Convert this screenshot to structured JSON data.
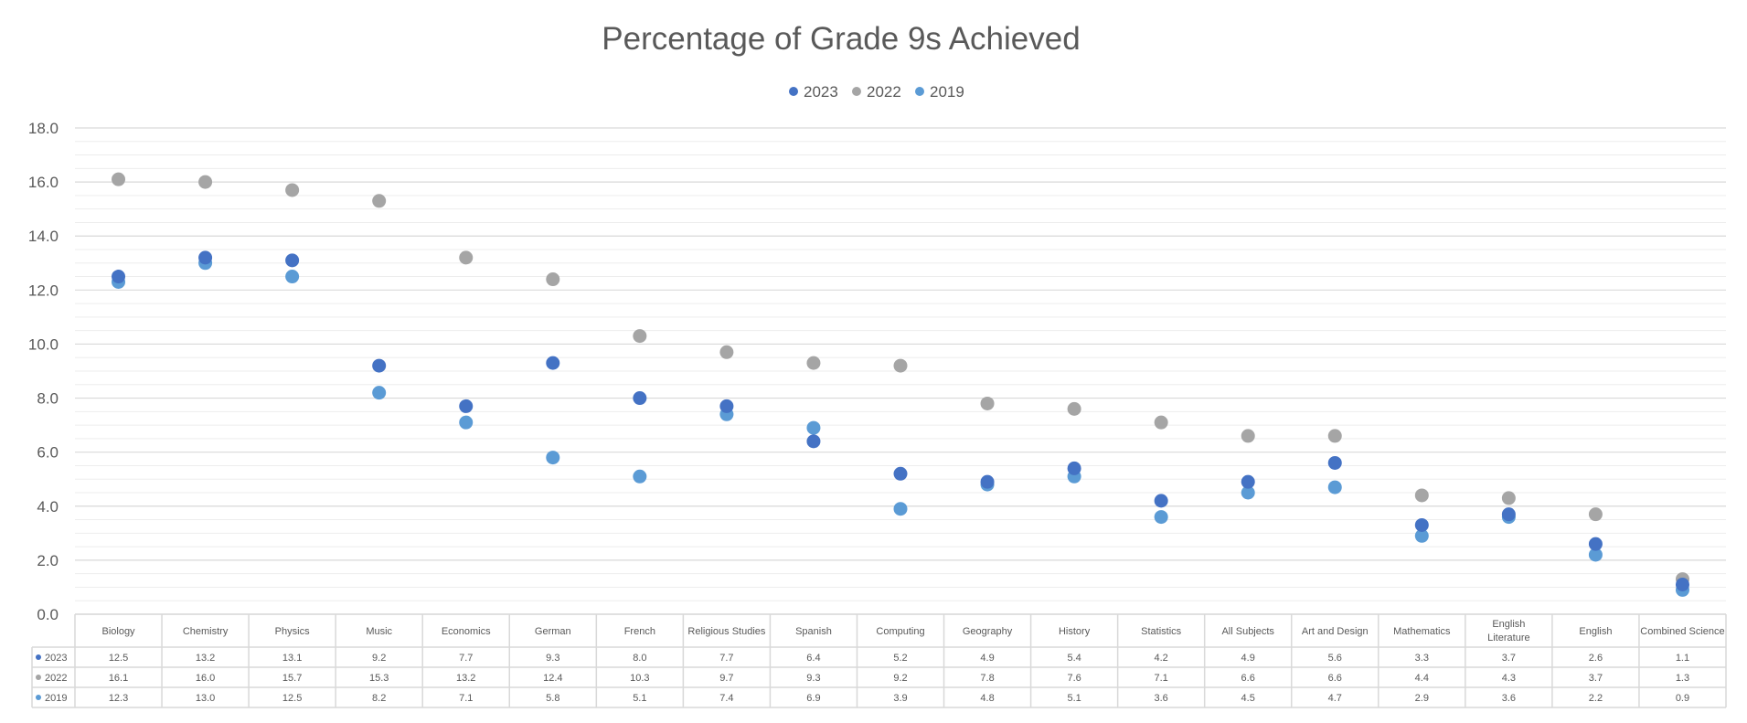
{
  "chart_data": {
    "type": "scatter",
    "title": "Percentage of Grade 9s Achieved",
    "categories": [
      "Biology",
      "Chemistry",
      "Physics",
      "Music",
      "Economics",
      "German",
      "French",
      "Religious Studies",
      "Spanish",
      "Computing",
      "Geography",
      "History",
      "Statistics",
      "All Subjects",
      "Art and Design",
      "Mathematics",
      "English Literature",
      "English",
      "Combined Science"
    ],
    "series": [
      {
        "name": "2023",
        "color": "#4472C4",
        "values": [
          12.5,
          13.2,
          13.1,
          9.2,
          7.7,
          9.3,
          8.0,
          7.7,
          6.4,
          5.2,
          4.9,
          5.4,
          4.2,
          4.9,
          5.6,
          3.3,
          3.7,
          2.6,
          1.1
        ]
      },
      {
        "name": "2022",
        "color": "#A5A5A5",
        "values": [
          16.1,
          16.0,
          15.7,
          15.3,
          13.2,
          12.4,
          10.3,
          9.7,
          9.3,
          9.2,
          7.8,
          7.6,
          7.1,
          6.6,
          6.6,
          4.4,
          4.3,
          3.7,
          1.3
        ]
      },
      {
        "name": "2019",
        "color": "#5B9BD5",
        "values": [
          12.3,
          13.0,
          12.5,
          8.2,
          7.1,
          5.8,
          5.1,
          7.4,
          6.9,
          3.9,
          4.8,
          5.1,
          3.6,
          4.5,
          4.7,
          2.9,
          3.6,
          2.2,
          0.9
        ]
      }
    ],
    "y_ticks": [
      "0.0",
      "2.0",
      "4.0",
      "6.0",
      "8.0",
      "10.0",
      "12.0",
      "14.0",
      "16.0",
      "18.0"
    ],
    "table_values": [
      [
        "12.5",
        "13.2",
        "13.1",
        "9.2",
        "7.7",
        "9.3",
        "8.0",
        "7.7",
        "6.4",
        "5.2",
        "4.9",
        "5.4",
        "4.2",
        "4.9",
        "5.6",
        "3.3",
        "3.7",
        "2.6",
        "1.1"
      ],
      [
        "16.1",
        "16.0",
        "15.7",
        "15.3",
        "13.2",
        "12.4",
        "10.3",
        "9.7",
        "9.3",
        "9.2",
        "7.8",
        "7.6",
        "7.1",
        "6.6",
        "6.6",
        "4.4",
        "4.3",
        "3.7",
        "1.3"
      ],
      [
        "12.3",
        "13.0",
        "12.5",
        "8.2",
        "7.1",
        "5.8",
        "5.1",
        "7.4",
        "6.9",
        "3.9",
        "4.8",
        "5.1",
        "3.6",
        "4.5",
        "4.7",
        "2.9",
        "3.6",
        "2.2",
        "0.9"
      ]
    ],
    "ylim": [
      0,
      18
    ],
    "major_grid_step": 2,
    "minor_grid_step": 0.5,
    "grid": true,
    "legend_position": "top",
    "data_table": true,
    "gridline_color": "#D9D9D9",
    "text_color": "#595959"
  }
}
